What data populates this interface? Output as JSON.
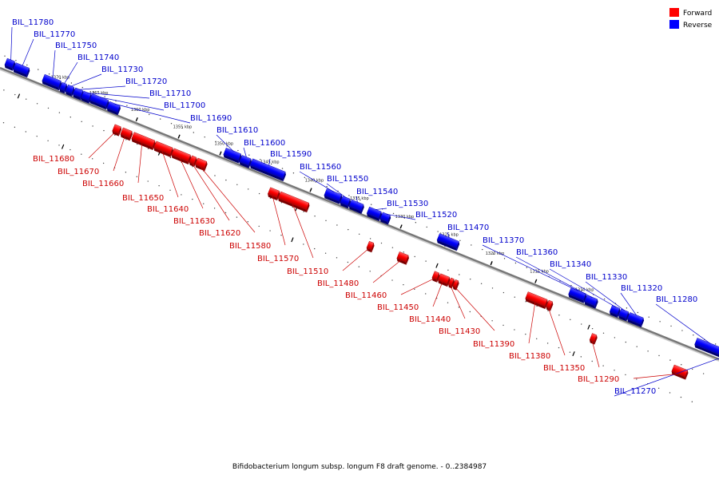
{
  "caption": "Bifidobacterium longum subsp. longum F8 draft genome. - 0..2384987",
  "legend": [
    {
      "label": "Forward",
      "color": "#ff0000"
    },
    {
      "label": "Reverse",
      "color": "#0000ff"
    }
  ],
  "colors": {
    "forward": "#ff0000",
    "reverse": "#0000ff",
    "forward_label": "#cc0000",
    "reverse_label": "#0000cc",
    "axis": "#777777"
  },
  "ticks": [
    "1370 kbp",
    "1365 kbp",
    "1360 kbp",
    "1355 kbp",
    "1350 kbp",
    "1345 kbp",
    "1340 kbp",
    "1335 kbp",
    "1330 kbp",
    "1325 kbp",
    "1320 kbp",
    "1315 kbp",
    "1310 kbp"
  ],
  "genes": [
    {
      "name": "BIL_11780",
      "strand": "reverse"
    },
    {
      "name": "BIL_11770",
      "strand": "reverse"
    },
    {
      "name": "BIL_11750",
      "strand": "reverse"
    },
    {
      "name": "BIL_11740",
      "strand": "reverse"
    },
    {
      "name": "BIL_11730",
      "strand": "reverse"
    },
    {
      "name": "BIL_11720",
      "strand": "reverse"
    },
    {
      "name": "BIL_11710",
      "strand": "reverse"
    },
    {
      "name": "BIL_11700",
      "strand": "reverse"
    },
    {
      "name": "BIL_11690",
      "strand": "reverse"
    },
    {
      "name": "BIL_11610",
      "strand": "reverse"
    },
    {
      "name": "BIL_11600",
      "strand": "reverse"
    },
    {
      "name": "BIL_11590",
      "strand": "reverse"
    },
    {
      "name": "BIL_11560",
      "strand": "reverse"
    },
    {
      "name": "BIL_11550",
      "strand": "reverse"
    },
    {
      "name": "BIL_11540",
      "strand": "reverse"
    },
    {
      "name": "BIL_11530",
      "strand": "reverse"
    },
    {
      "name": "BIL_11520",
      "strand": "reverse"
    },
    {
      "name": "BIL_11470",
      "strand": "reverse"
    },
    {
      "name": "BIL_11370",
      "strand": "reverse"
    },
    {
      "name": "BIL_11360",
      "strand": "reverse"
    },
    {
      "name": "BIL_11340",
      "strand": "reverse"
    },
    {
      "name": "BIL_11330",
      "strand": "reverse"
    },
    {
      "name": "BIL_11320",
      "strand": "reverse"
    },
    {
      "name": "BIL_11280",
      "strand": "reverse"
    },
    {
      "name": "BIL_11270",
      "strand": "reverse"
    },
    {
      "name": "BIL_11680",
      "strand": "forward"
    },
    {
      "name": "BIL_11670",
      "strand": "forward"
    },
    {
      "name": "BIL_11660",
      "strand": "forward"
    },
    {
      "name": "BIL_11650",
      "strand": "forward"
    },
    {
      "name": "BIL_11640",
      "strand": "forward"
    },
    {
      "name": "BIL_11630",
      "strand": "forward"
    },
    {
      "name": "BIL_11620",
      "strand": "forward"
    },
    {
      "name": "BIL_11580",
      "strand": "forward"
    },
    {
      "name": "BIL_11570",
      "strand": "forward"
    },
    {
      "name": "BIL_11510",
      "strand": "forward"
    },
    {
      "name": "BIL_11480",
      "strand": "forward"
    },
    {
      "name": "BIL_11460",
      "strand": "forward"
    },
    {
      "name": "BIL_11450",
      "strand": "forward"
    },
    {
      "name": "BIL_11440",
      "strand": "forward"
    },
    {
      "name": "BIL_11430",
      "strand": "forward"
    },
    {
      "name": "BIL_11390",
      "strand": "forward"
    },
    {
      "name": "BIL_11380",
      "strand": "forward"
    },
    {
      "name": "BIL_11350",
      "strand": "forward"
    },
    {
      "name": "BIL_11290",
      "strand": "forward"
    }
  ]
}
